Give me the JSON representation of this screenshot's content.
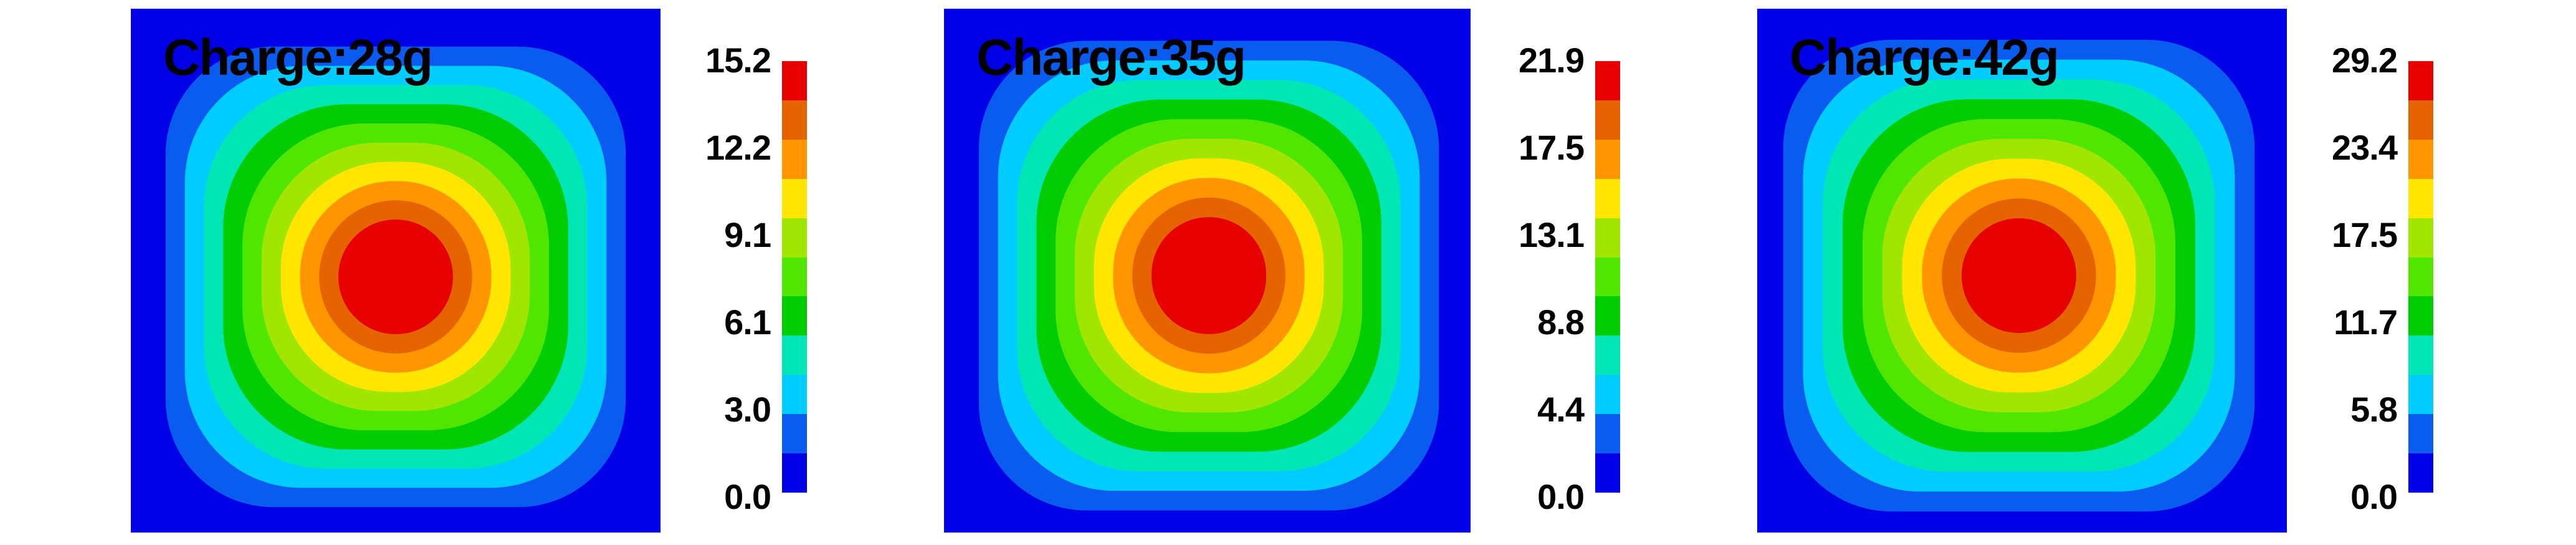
{
  "colorscale": [
    "#0000e6",
    "#0a5cf0",
    "#00ccff",
    "#00e6b4",
    "#00cc00",
    "#50e600",
    "#a0e600",
    "#ffe600",
    "#ff9600",
    "#e66400",
    "#e60000"
  ],
  "chart_data": [
    {
      "type": "heatmap",
      "title": "Charge:28g",
      "colorbar_ticks": [
        "15.2",
        "12.2",
        "9.1",
        "6.1",
        "3.0",
        "0.0"
      ],
      "range": [
        0.0,
        15.2
      ]
    },
    {
      "type": "heatmap",
      "title": "Charge:35g",
      "colorbar_ticks": [
        "21.9",
        "17.5",
        "13.1",
        "8.8",
        "4.4",
        "0.0"
      ],
      "range": [
        0.0,
        21.9
      ]
    },
    {
      "type": "heatmap",
      "title": "Charge:42g",
      "colorbar_ticks": [
        "29.2",
        "23.4",
        "17.5",
        "11.7",
        "5.8",
        "0.0"
      ],
      "range": [
        0.0,
        29.2
      ]
    }
  ]
}
